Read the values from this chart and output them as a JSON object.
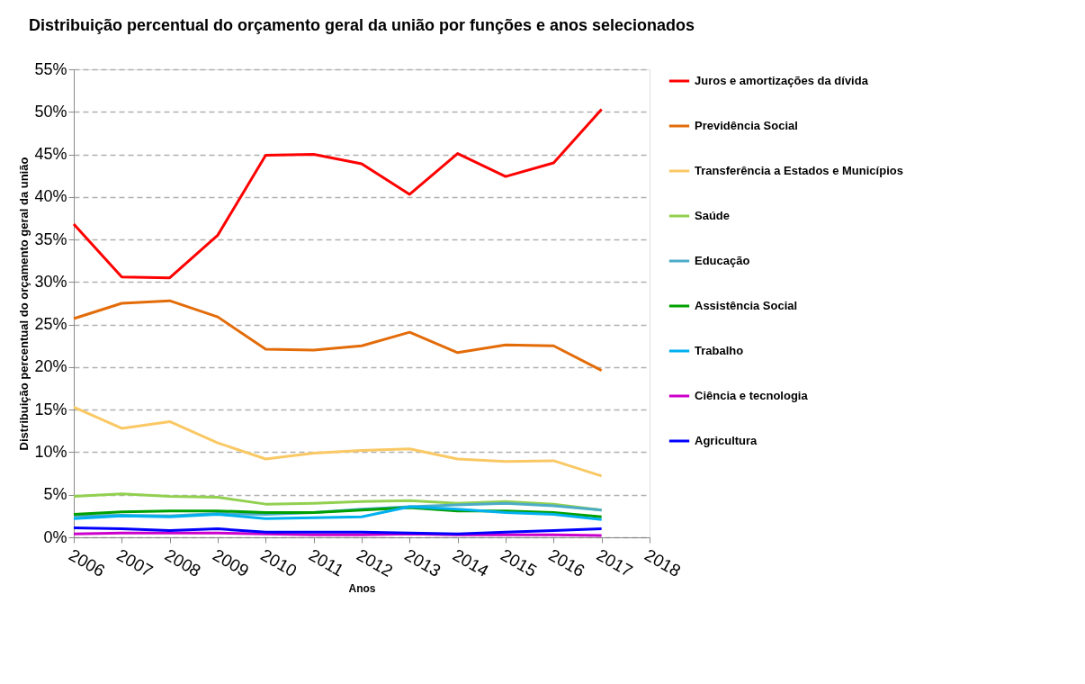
{
  "chart_data": {
    "type": "line",
    "title": "Distribuição percentual do orçamento geral da união por funções e anos selecionados",
    "xlabel": "Anos",
    "ylabel": "Distribuição percentual do orçamento geral da união",
    "x": [
      2006,
      2007,
      2008,
      2009,
      2010,
      2011,
      2012,
      2013,
      2014,
      2015,
      2016,
      2017
    ],
    "series": [
      {
        "name": "Juros e amortizações da dívida",
        "color": "#ff0000",
        "values": [
          36.8,
          30.6,
          30.5,
          35.5,
          44.9,
          45.0,
          43.9,
          40.3,
          45.1,
          42.4,
          44.0,
          50.3
        ]
      },
      {
        "name": "Previdência Social",
        "color": "#e36c09",
        "values": [
          25.7,
          27.5,
          27.8,
          25.9,
          22.1,
          22.0,
          22.5,
          24.1,
          21.7,
          22.6,
          22.5,
          19.6
        ]
      },
      {
        "name": "Transferência a Estados e Municípios",
        "color": "#fac864",
        "values": [
          15.3,
          12.8,
          13.6,
          11.1,
          9.2,
          9.9,
          10.2,
          10.4,
          9.2,
          8.9,
          9.0,
          7.2
        ]
      },
      {
        "name": "Saúde",
        "color": "#92d050",
        "values": [
          4.8,
          5.1,
          4.8,
          4.7,
          3.9,
          4.0,
          4.2,
          4.3,
          4.0,
          4.2,
          3.9,
          3.2
        ]
      },
      {
        "name": "Educação",
        "color": "#4bacc6",
        "values": [
          2.5,
          2.6,
          2.5,
          2.8,
          2.7,
          2.9,
          3.3,
          3.6,
          3.8,
          4.0,
          3.7,
          3.2
        ]
      },
      {
        "name": "Assistência Social",
        "color": "#00a000",
        "values": [
          2.7,
          3.0,
          3.1,
          3.1,
          2.9,
          2.9,
          3.2,
          3.5,
          3.1,
          3.1,
          2.9,
          2.4
        ]
      },
      {
        "name": "Trabalho",
        "color": "#00b0f0",
        "values": [
          2.2,
          2.5,
          2.4,
          2.7,
          2.2,
          2.3,
          2.4,
          3.6,
          3.3,
          2.9,
          2.7,
          2.1
        ]
      },
      {
        "name": "Ciência e tecnologia",
        "color": "#cc00cc",
        "values": [
          0.4,
          0.5,
          0.5,
          0.5,
          0.4,
          0.3,
          0.3,
          0.4,
          0.3,
          0.3,
          0.3,
          0.2
        ]
      },
      {
        "name": "Agricultura",
        "color": "#0000ff",
        "values": [
          1.1,
          1.0,
          0.8,
          1.0,
          0.6,
          0.6,
          0.6,
          0.5,
          0.4,
          0.6,
          0.8,
          1.0
        ]
      }
    ],
    "xlim": [
      2006,
      2018
    ],
    "xticks": [
      2006,
      2007,
      2008,
      2009,
      2010,
      2011,
      2012,
      2013,
      2014,
      2015,
      2016,
      2017,
      2018
    ],
    "ylim": [
      0,
      55
    ],
    "yticks": [
      {
        "value": 0,
        "label": "0%"
      },
      {
        "value": 5,
        "label": "5%"
      },
      {
        "value": 10,
        "label": "10%"
      },
      {
        "value": 15,
        "label": "15%"
      },
      {
        "value": 20,
        "label": "20%"
      },
      {
        "value": 25,
        "label": "25%"
      },
      {
        "value": 30,
        "label": "30%"
      },
      {
        "value": 35,
        "label": "35%"
      },
      {
        "value": 40,
        "label": "40%"
      },
      {
        "value": 45,
        "label": "45%"
      },
      {
        "value": 50,
        "label": "50%"
      },
      {
        "value": 55,
        "label": "55%"
      }
    ],
    "grid": "y",
    "legend": "right",
    "line_style": "solid",
    "marker": "none"
  }
}
